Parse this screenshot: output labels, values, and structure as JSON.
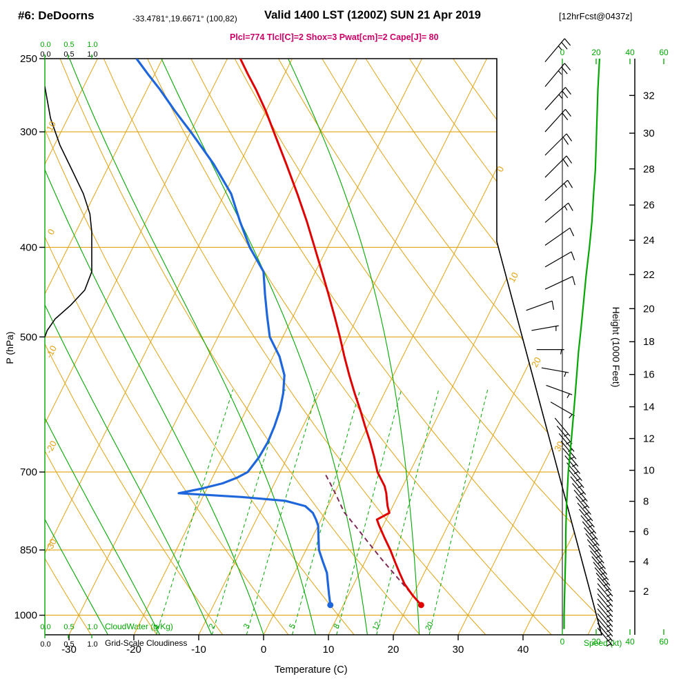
{
  "header": {
    "station": "#6: DeDoorns",
    "coords": "-33.4781°,19.6671° (100,82)",
    "valid": "Valid 1400 LST (1200Z) SUN 21 Apr 2019",
    "fcst": "[12hrFcst@0437z]",
    "indices": "Plcl=774 Tlcl[C]=2 Shox=3 Pwat[cm]=2 Cape[J]= 80"
  },
  "axes": {
    "pressure_label": "P (hPa)",
    "temperature_label": "Temperature (C)",
    "height_label": "Height (1000 Feet)",
    "speed_label": "Speed (kt)",
    "cloudwater_label": "CloudWater (g/Kg)",
    "cloudiness_label": "Grid-Scale Cloudiness",
    "cloud_scale": [
      "0.0",
      "0.5",
      "1.0"
    ],
    "pressure_ticks": [
      250,
      300,
      400,
      500,
      700,
      850,
      1000
    ],
    "temperature_ticks": [
      -30,
      -20,
      -10,
      0,
      10,
      20,
      30,
      40
    ],
    "height_ticks": [
      [
        2,
        942
      ],
      [
        4,
        875
      ],
      [
        6,
        812
      ],
      [
        8,
        753
      ],
      [
        10,
        697
      ],
      [
        12,
        644
      ],
      [
        14,
        595
      ],
      [
        16,
        549
      ],
      [
        18,
        506
      ],
      [
        20,
        466
      ],
      [
        22,
        428
      ],
      [
        24,
        393
      ],
      [
        26,
        360
      ],
      [
        28,
        329
      ],
      [
        30,
        301
      ],
      [
        32,
        274
      ]
    ],
    "speed_ticks": [
      0,
      20,
      40,
      60
    ]
  },
  "colors": {
    "lattice_orange": "#e2a312",
    "green": "#00a800",
    "temperature_red": "#e00000",
    "dewpoint_blue": "#1e66dc",
    "parcel": "#7d2a55",
    "indices_magenta": "#cc0066",
    "black": "#000000"
  },
  "chart_data": {
    "type": "line",
    "diagram": "skew-t-log-p-sounding",
    "pressure_range_hPa": [
      250,
      1050
    ],
    "temperature_axis_C": [
      -30,
      40
    ],
    "surface": {
      "p": 975,
      "t": 22,
      "td": 8
    },
    "temperature_C": [
      [
        975,
        22
      ],
      [
        950,
        19.8
      ],
      [
        925,
        17.8
      ],
      [
        900,
        16.2
      ],
      [
        875,
        14.6
      ],
      [
        850,
        13
      ],
      [
        825,
        11.2
      ],
      [
        800,
        9.4
      ],
      [
        788,
        8.6
      ],
      [
        775,
        10
      ],
      [
        762,
        9.2
      ],
      [
        750,
        8.6
      ],
      [
        738,
        8
      ],
      [
        725,
        7.2
      ],
      [
        700,
        5
      ],
      [
        675,
        3.4
      ],
      [
        650,
        1.6
      ],
      [
        625,
        -0.4
      ],
      [
        600,
        -2.4
      ],
      [
        575,
        -4.6
      ],
      [
        550,
        -6.8
      ],
      [
        525,
        -9
      ],
      [
        500,
        -11.2
      ],
      [
        475,
        -13.6
      ],
      [
        450,
        -16.2
      ],
      [
        425,
        -19
      ],
      [
        400,
        -22
      ],
      [
        375,
        -25.2
      ],
      [
        350,
        -28.8
      ],
      [
        325,
        -32.8
      ],
      [
        300,
        -37.2
      ],
      [
        285,
        -40
      ],
      [
        270,
        -43.2
      ],
      [
        260,
        -45.6
      ],
      [
        250,
        -48
      ]
    ],
    "dewpoint_C": [
      [
        975,
        8
      ],
      [
        950,
        7
      ],
      [
        925,
        6
      ],
      [
        900,
        5
      ],
      [
        875,
        3.5
      ],
      [
        850,
        2
      ],
      [
        825,
        1
      ],
      [
        800,
        0
      ],
      [
        788,
        -0.8
      ],
      [
        775,
        -1.8
      ],
      [
        762,
        -3.5
      ],
      [
        752,
        -7
      ],
      [
        745,
        -14
      ],
      [
        738,
        -24
      ],
      [
        730,
        -21
      ],
      [
        720,
        -18
      ],
      [
        710,
        -16.2
      ],
      [
        700,
        -15
      ],
      [
        675,
        -14.4
      ],
      [
        650,
        -14.2
      ],
      [
        625,
        -14.4
      ],
      [
        600,
        -14.8
      ],
      [
        575,
        -15.6
      ],
      [
        550,
        -16.8
      ],
      [
        525,
        -19
      ],
      [
        500,
        -22
      ],
      [
        475,
        -24
      ],
      [
        450,
        -26
      ],
      [
        425,
        -28
      ],
      [
        400,
        -32
      ],
      [
        375,
        -35.5
      ],
      [
        350,
        -39
      ],
      [
        325,
        -44
      ],
      [
        300,
        -50
      ],
      [
        285,
        -54
      ],
      [
        270,
        -58
      ],
      [
        260,
        -61
      ],
      [
        250,
        -64
      ]
    ],
    "parcel_C": [
      [
        975,
        22
      ],
      [
        940,
        18.9
      ],
      [
        905,
        15.7
      ],
      [
        870,
        12.4
      ],
      [
        835,
        9.1
      ],
      [
        800,
        5.7
      ],
      [
        774,
        3
      ],
      [
        760,
        1.9
      ],
      [
        740,
        0.3
      ],
      [
        720,
        -1.4
      ],
      [
        700,
        -3.2
      ]
    ],
    "cloudiness_fraction": [
      [
        268,
        0
      ],
      [
        290,
        0.12
      ],
      [
        310,
        0.32
      ],
      [
        330,
        0.58
      ],
      [
        350,
        0.82
      ],
      [
        368,
        0.96
      ],
      [
        385,
        1
      ],
      [
        425,
        1
      ],
      [
        445,
        0.85
      ],
      [
        462,
        0.55
      ],
      [
        478,
        0.22
      ],
      [
        492,
        0.05
      ],
      [
        500,
        0
      ]
    ],
    "speed_profile_kt": [
      [
        250,
        22
      ],
      [
        270,
        21
      ],
      [
        290,
        20.5
      ],
      [
        310,
        20
      ],
      [
        330,
        19.5
      ],
      [
        350,
        18.5
      ],
      [
        375,
        17.5
      ],
      [
        400,
        16
      ],
      [
        430,
        14
      ],
      [
        460,
        12.5
      ],
      [
        490,
        11
      ],
      [
        520,
        9.5
      ],
      [
        550,
        8.5
      ],
      [
        580,
        7.5
      ],
      [
        610,
        6.5
      ],
      [
        640,
        5.5
      ],
      [
        670,
        4.5
      ],
      [
        700,
        3.5
      ],
      [
        730,
        3
      ],
      [
        760,
        2.5
      ],
      [
        790,
        2.2
      ],
      [
        820,
        2
      ],
      [
        850,
        2
      ],
      [
        880,
        1.8
      ],
      [
        910,
        1.6
      ],
      [
        940,
        1.4
      ],
      [
        970,
        1.2
      ],
      [
        1000,
        1
      ],
      [
        1035,
        1
      ]
    ],
    "wind_barbs": [
      [
        252,
        25,
        40
      ],
      [
        268,
        25,
        40
      ],
      [
        284,
        25,
        42
      ],
      [
        300,
        20,
        42
      ],
      [
        318,
        20,
        45
      ],
      [
        336,
        20,
        45
      ],
      [
        356,
        15,
        48
      ],
      [
        376,
        15,
        50
      ],
      [
        398,
        12,
        55
      ],
      [
        420,
        10,
        60
      ],
      [
        444,
        10,
        65
      ],
      [
        468,
        10,
        70
      ],
      [
        492,
        8,
        80
      ],
      [
        516,
        8,
        90
      ],
      [
        540,
        6,
        100
      ],
      [
        564,
        5,
        110
      ],
      [
        588,
        5,
        120
      ]
    ],
    "wind_barb_fill": {
      "from": 612,
      "to": 1032,
      "step": 12,
      "kt": 5,
      "ang": 140
    },
    "isotherms": {
      "from": -120,
      "to": 60,
      "step": 10
    },
    "dry_adiabats": {
      "from": -60,
      "to": 210,
      "step": 10
    },
    "moist_adiabats": [
      -24,
      -16,
      -8,
      0,
      8,
      16,
      24
    ],
    "mixing_ratios_gkg": [
      1,
      2,
      3,
      5,
      8,
      12,
      20
    ],
    "dry_adiabat_edge_labels": [
      [
        10,
        185
      ],
      [
        0,
        338
      ],
      [
        -10,
        512
      ],
      [
        -20,
        650
      ],
      [
        -30,
        792
      ]
    ],
    "slant_isotherm_labels": [
      [
        0,
        729,
        247
      ],
      [
        10,
        748,
        404
      ],
      [
        20,
        781,
        527
      ],
      [
        30,
        814,
        649
      ]
    ]
  }
}
